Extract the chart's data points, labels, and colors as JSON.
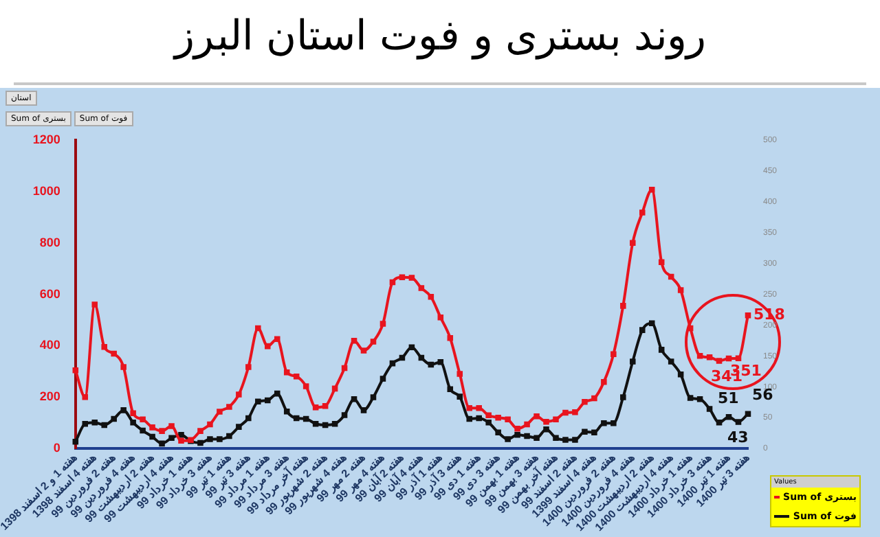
{
  "chart_data": {
    "type": "line",
    "title": "روند بستری و فوت استان البرز",
    "categories": [
      "هفته 1 و 2 اسفند 1398",
      null,
      "هفته 4 اسفند 1398",
      null,
      "هفته 2 فروردین 99",
      null,
      "هفته 4 فروردین 99",
      null,
      "هفته 2 اردیبهشت 99",
      null,
      "هفته 4 اردیبهشت 99",
      null,
      "هفته 1 خرداد 99",
      null,
      "هفته 3 خرداد 99",
      null,
      "هفته 1 تیر 99",
      null,
      "هفته 3 تیر 99",
      null,
      "هفته 1 مرداد 99",
      null,
      "هفته 3 مرداد 99",
      null,
      "هفته آخر مرداد 99",
      null,
      "هفته 2 شهریور 99",
      null,
      "هفته 4 شهریور 99",
      null,
      "هفته 2 مهر 99",
      null,
      "هفته 4 مهر 99",
      null,
      "هفته 2 آبان 99",
      null,
      "هفته 4 آبان 99",
      null,
      "هفته 1 آذر 99",
      null,
      "هفته 3 آذر 99",
      null,
      "هفته 1 دی 99",
      null,
      "هفته 3 دی 99",
      null,
      "هفته 1 بهمن 99",
      null,
      "هفته 3 بهمن 99",
      null,
      "هفته آخر بهمن 99",
      null,
      "هفته 2 اسفند 99",
      null,
      "هفته 4 اسفند 1399",
      null,
      "هفته 2 فروردین 1400",
      null,
      "هفته 4 فروردین 1400",
      null,
      "هفته 2 اردیبهشت 1400",
      null,
      "هفته 4 اردیبهشت 1400",
      null,
      "هفته 1 خرداد 1400",
      null,
      "هفته 3 خرداد 1400",
      null,
      "هفته 1 تیر 1400",
      null,
      "هفته 3 تیر 1400"
    ],
    "series": [
      {
        "name": "Sum of بستری",
        "color": "#e8141e",
        "values": [
          304,
          200,
          560,
          395,
          369,
          317,
          137,
          113,
          82,
          68,
          87,
          30,
          33,
          68,
          94,
          143,
          162,
          210,
          317,
          468,
          398,
          426,
          296,
          280,
          242,
          160,
          165,
          233,
          313,
          419,
          381,
          416,
          485,
          647,
          666,
          664,
          624,
          590,
          510,
          430,
          290,
          157,
          157,
          129,
          120,
          113,
          77,
          94,
          125,
          104,
          113,
          139,
          141,
          181,
          195,
          259,
          367,
          555,
          800,
          918,
          1007,
          725,
          668,
          616,
          468,
          360,
          355,
          341,
          350,
          351,
          518
        ],
        "value_labels": [
          null,
          null,
          null,
          null,
          null,
          null,
          null,
          null,
          null,
          null,
          null,
          null,
          null,
          null,
          null,
          null,
          null,
          null,
          null,
          null,
          null,
          null,
          null,
          null,
          null,
          null,
          null,
          null,
          null,
          null,
          null,
          null,
          null,
          null,
          null,
          null,
          null,
          null,
          null,
          null,
          null,
          null,
          null,
          null,
          null,
          null,
          null,
          null,
          null,
          null,
          null,
          null,
          null,
          null,
          null,
          null,
          null,
          null,
          null,
          null,
          null,
          null,
          null,
          null,
          null,
          null,
          null,
          "341",
          null,
          "351",
          "518"
        ]
      },
      {
        "name": "Sum of فوت",
        "color": "#111111",
        "axis": "y2",
        "values": [
          11,
          40,
          42,
          38,
          48,
          62,
          42,
          29,
          19,
          8,
          17,
          22,
          12,
          9,
          15,
          15,
          20,
          35,
          49,
          76,
          78,
          89,
          60,
          49,
          48,
          40,
          38,
          40,
          54,
          80,
          62,
          83,
          113,
          138,
          147,
          164,
          147,
          136,
          140,
          96,
          84,
          48,
          49,
          42,
          26,
          15,
          22,
          20,
          17,
          31,
          17,
          14,
          14,
          27,
          26,
          41,
          41,
          83,
          141,
          192,
          203,
          160,
          141,
          120,
          82,
          80,
          64,
          42,
          51,
          43,
          56
        ],
        "value_labels": [
          null,
          null,
          null,
          null,
          null,
          null,
          null,
          null,
          null,
          null,
          null,
          null,
          null,
          null,
          null,
          null,
          null,
          null,
          null,
          null,
          null,
          null,
          null,
          null,
          null,
          null,
          null,
          null,
          null,
          null,
          null,
          null,
          null,
          null,
          null,
          null,
          null,
          null,
          null,
          null,
          null,
          null,
          null,
          null,
          null,
          null,
          null,
          null,
          null,
          null,
          null,
          null,
          null,
          null,
          null,
          null,
          null,
          null,
          null,
          null,
          null,
          null,
          null,
          null,
          null,
          null,
          null,
          null,
          "51",
          "43",
          "56"
        ]
      }
    ],
    "ylim": [
      0,
      1200
    ],
    "yticks": [
      0,
      200,
      400,
      600,
      800,
      1000,
      1200
    ],
    "y2lim": [
      0,
      500
    ],
    "y2ticks": [
      0,
      50,
      100,
      150,
      200,
      250,
      300,
      350,
      400,
      450,
      500
    ],
    "legend": "bottom right",
    "legend_title": "Values",
    "marker": "square",
    "line_style": "solid",
    "grid": false,
    "annotations": [
      "استان",
      "Sum of بستری",
      "Sum of فوت"
    ]
  }
}
